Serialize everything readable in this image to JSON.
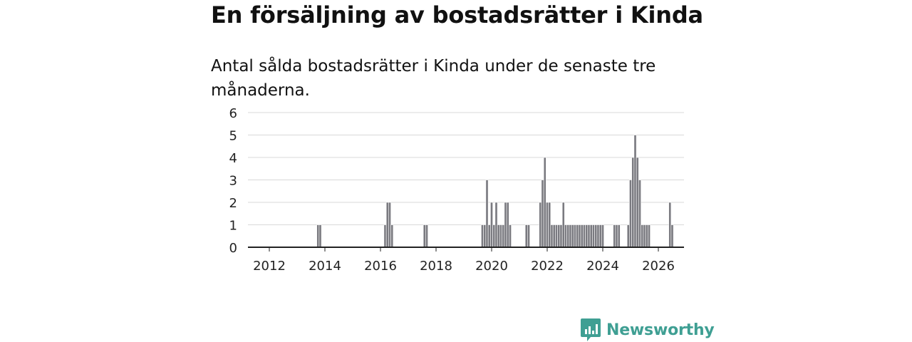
{
  "title": "En försäljning av bostadsrätter i Kinda",
  "subtitle": "Antal sålda bostadsrätter i Kinda under de senaste tre månaderna.",
  "brand": {
    "name": "Newsworthy",
    "icon": "newsworthy-logo-icon",
    "color": "#3f9f93"
  },
  "chart_data": {
    "type": "bar",
    "title": "",
    "xlabel": "",
    "ylabel": "",
    "ylim": [
      0,
      6
    ],
    "yticks": [
      0,
      1,
      2,
      3,
      4,
      5,
      6
    ],
    "x_start": 2011.0,
    "x_step": 0.0833333,
    "xticks": [
      "2012",
      "2014",
      "2016",
      "2018",
      "2020",
      "2022",
      "2024",
      "2026"
    ],
    "xtick_values": [
      2012,
      2014,
      2016,
      2018,
      2020,
      2022,
      2024,
      2026
    ],
    "bar_color": "#7a7a80",
    "highlight_color": "#3aaea0",
    "highlight_index": 182,
    "highlight_label": "1",
    "grid": true,
    "values": [
      0,
      0,
      0,
      0,
      0,
      0,
      0,
      0,
      0,
      0,
      0,
      0,
      0,
      0,
      0,
      0,
      0,
      0,
      0,
      0,
      0,
      0,
      0,
      0,
      0,
      0,
      0,
      0,
      0,
      0,
      0,
      0,
      0,
      1,
      1,
      0,
      0,
      0,
      0,
      0,
      0,
      0,
      0,
      0,
      0,
      0,
      0,
      0,
      0,
      0,
      0,
      0,
      0,
      0,
      0,
      0,
      0,
      0,
      0,
      0,
      0,
      0,
      1,
      2,
      2,
      1,
      0,
      0,
      0,
      0,
      0,
      0,
      0,
      0,
      0,
      0,
      0,
      0,
      0,
      1,
      1,
      0,
      0,
      0,
      0,
      0,
      0,
      0,
      0,
      0,
      0,
      0,
      0,
      0,
      0,
      0,
      0,
      0,
      0,
      0,
      0,
      0,
      0,
      0,
      1,
      1,
      3,
      1,
      2,
      1,
      2,
      1,
      1,
      1,
      2,
      2,
      1,
      0,
      0,
      0,
      0,
      0,
      0,
      1,
      1,
      0,
      0,
      0,
      0,
      2,
      3,
      4,
      2,
      2,
      1,
      1,
      1,
      1,
      1,
      2,
      1,
      1,
      1,
      1,
      1,
      1,
      1,
      1,
      1,
      1,
      1,
      1,
      1,
      1,
      1,
      1,
      1,
      0,
      0,
      0,
      0,
      1,
      1,
      1,
      0,
      0,
      0,
      1,
      3,
      4,
      5,
      4,
      3,
      1,
      1,
      1,
      1,
      0,
      0,
      0,
      0,
      0,
      0,
      0,
      0,
      2,
      1
    ]
  }
}
